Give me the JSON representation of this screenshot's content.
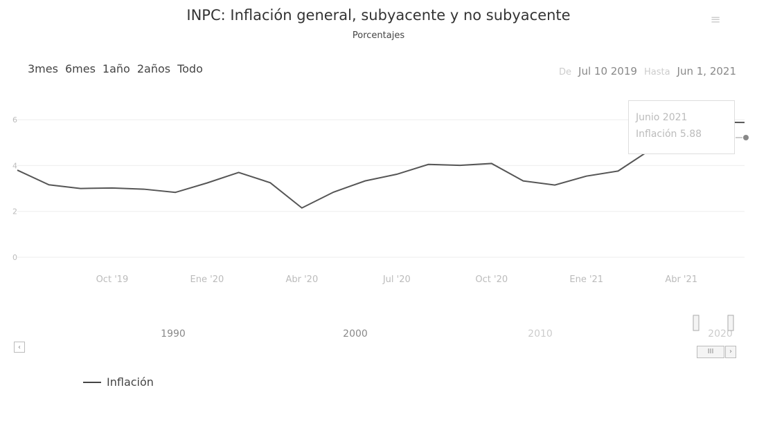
{
  "header": {
    "title": "INPC: Inflación general, subyacente y no subyacente",
    "subtitle": "Porcentajes"
  },
  "range_buttons": [
    "3mes",
    "6mes",
    "1año",
    "2años",
    "Todo"
  ],
  "date_range": {
    "from_label": "De",
    "from_value": "Jul 10  2019",
    "to_label": "Hasta",
    "to_value": "Jun 1, 2021"
  },
  "tooltip": {
    "line1": "Junio 2021",
    "line2": "Inflación  5.88"
  },
  "navigator": {
    "labels": [
      "1990",
      "2000",
      "2010",
      "2020"
    ],
    "scroll_left": "‹",
    "scroll_mid": "III",
    "scroll_right": "›"
  },
  "legend": {
    "label": "Inflación"
  },
  "colors": {
    "line": "#555555",
    "grid": "#eeeeee",
    "axis_text": "#bbbbbb"
  },
  "chart_data": {
    "type": "line",
    "title": "INPC: Inflación general, subyacente y no subyacente",
    "subtitle": "Porcentajes",
    "xlabel": "",
    "ylabel": "",
    "ylim": [
      0,
      7
    ],
    "y_ticks": [
      0,
      2,
      4,
      6
    ],
    "x_ticks": [
      "Oct '19",
      "Ene '20",
      "Abr '20",
      "Jul '20",
      "Oct '20",
      "Ene '21",
      "Abr '21"
    ],
    "grid": true,
    "legend": "bottom-left",
    "series": [
      {
        "name": "Inflación",
        "x": [
          "2019-07",
          "2019-08",
          "2019-09",
          "2019-10",
          "2019-11",
          "2019-12",
          "2020-01",
          "2020-02",
          "2020-03",
          "2020-04",
          "2020-05",
          "2020-06",
          "2020-07",
          "2020-08",
          "2020-09",
          "2020-10",
          "2020-11",
          "2020-12",
          "2021-01",
          "2021-02",
          "2021-03",
          "2021-04",
          "2021-05",
          "2021-06"
        ],
        "values": [
          3.8,
          3.16,
          3.0,
          3.02,
          2.97,
          2.83,
          3.24,
          3.7,
          3.25,
          2.15,
          2.84,
          3.33,
          3.62,
          4.05,
          4.01,
          4.09,
          3.33,
          3.15,
          3.54,
          3.76,
          4.67,
          6.08,
          5.89,
          5.88
        ]
      }
    ]
  }
}
